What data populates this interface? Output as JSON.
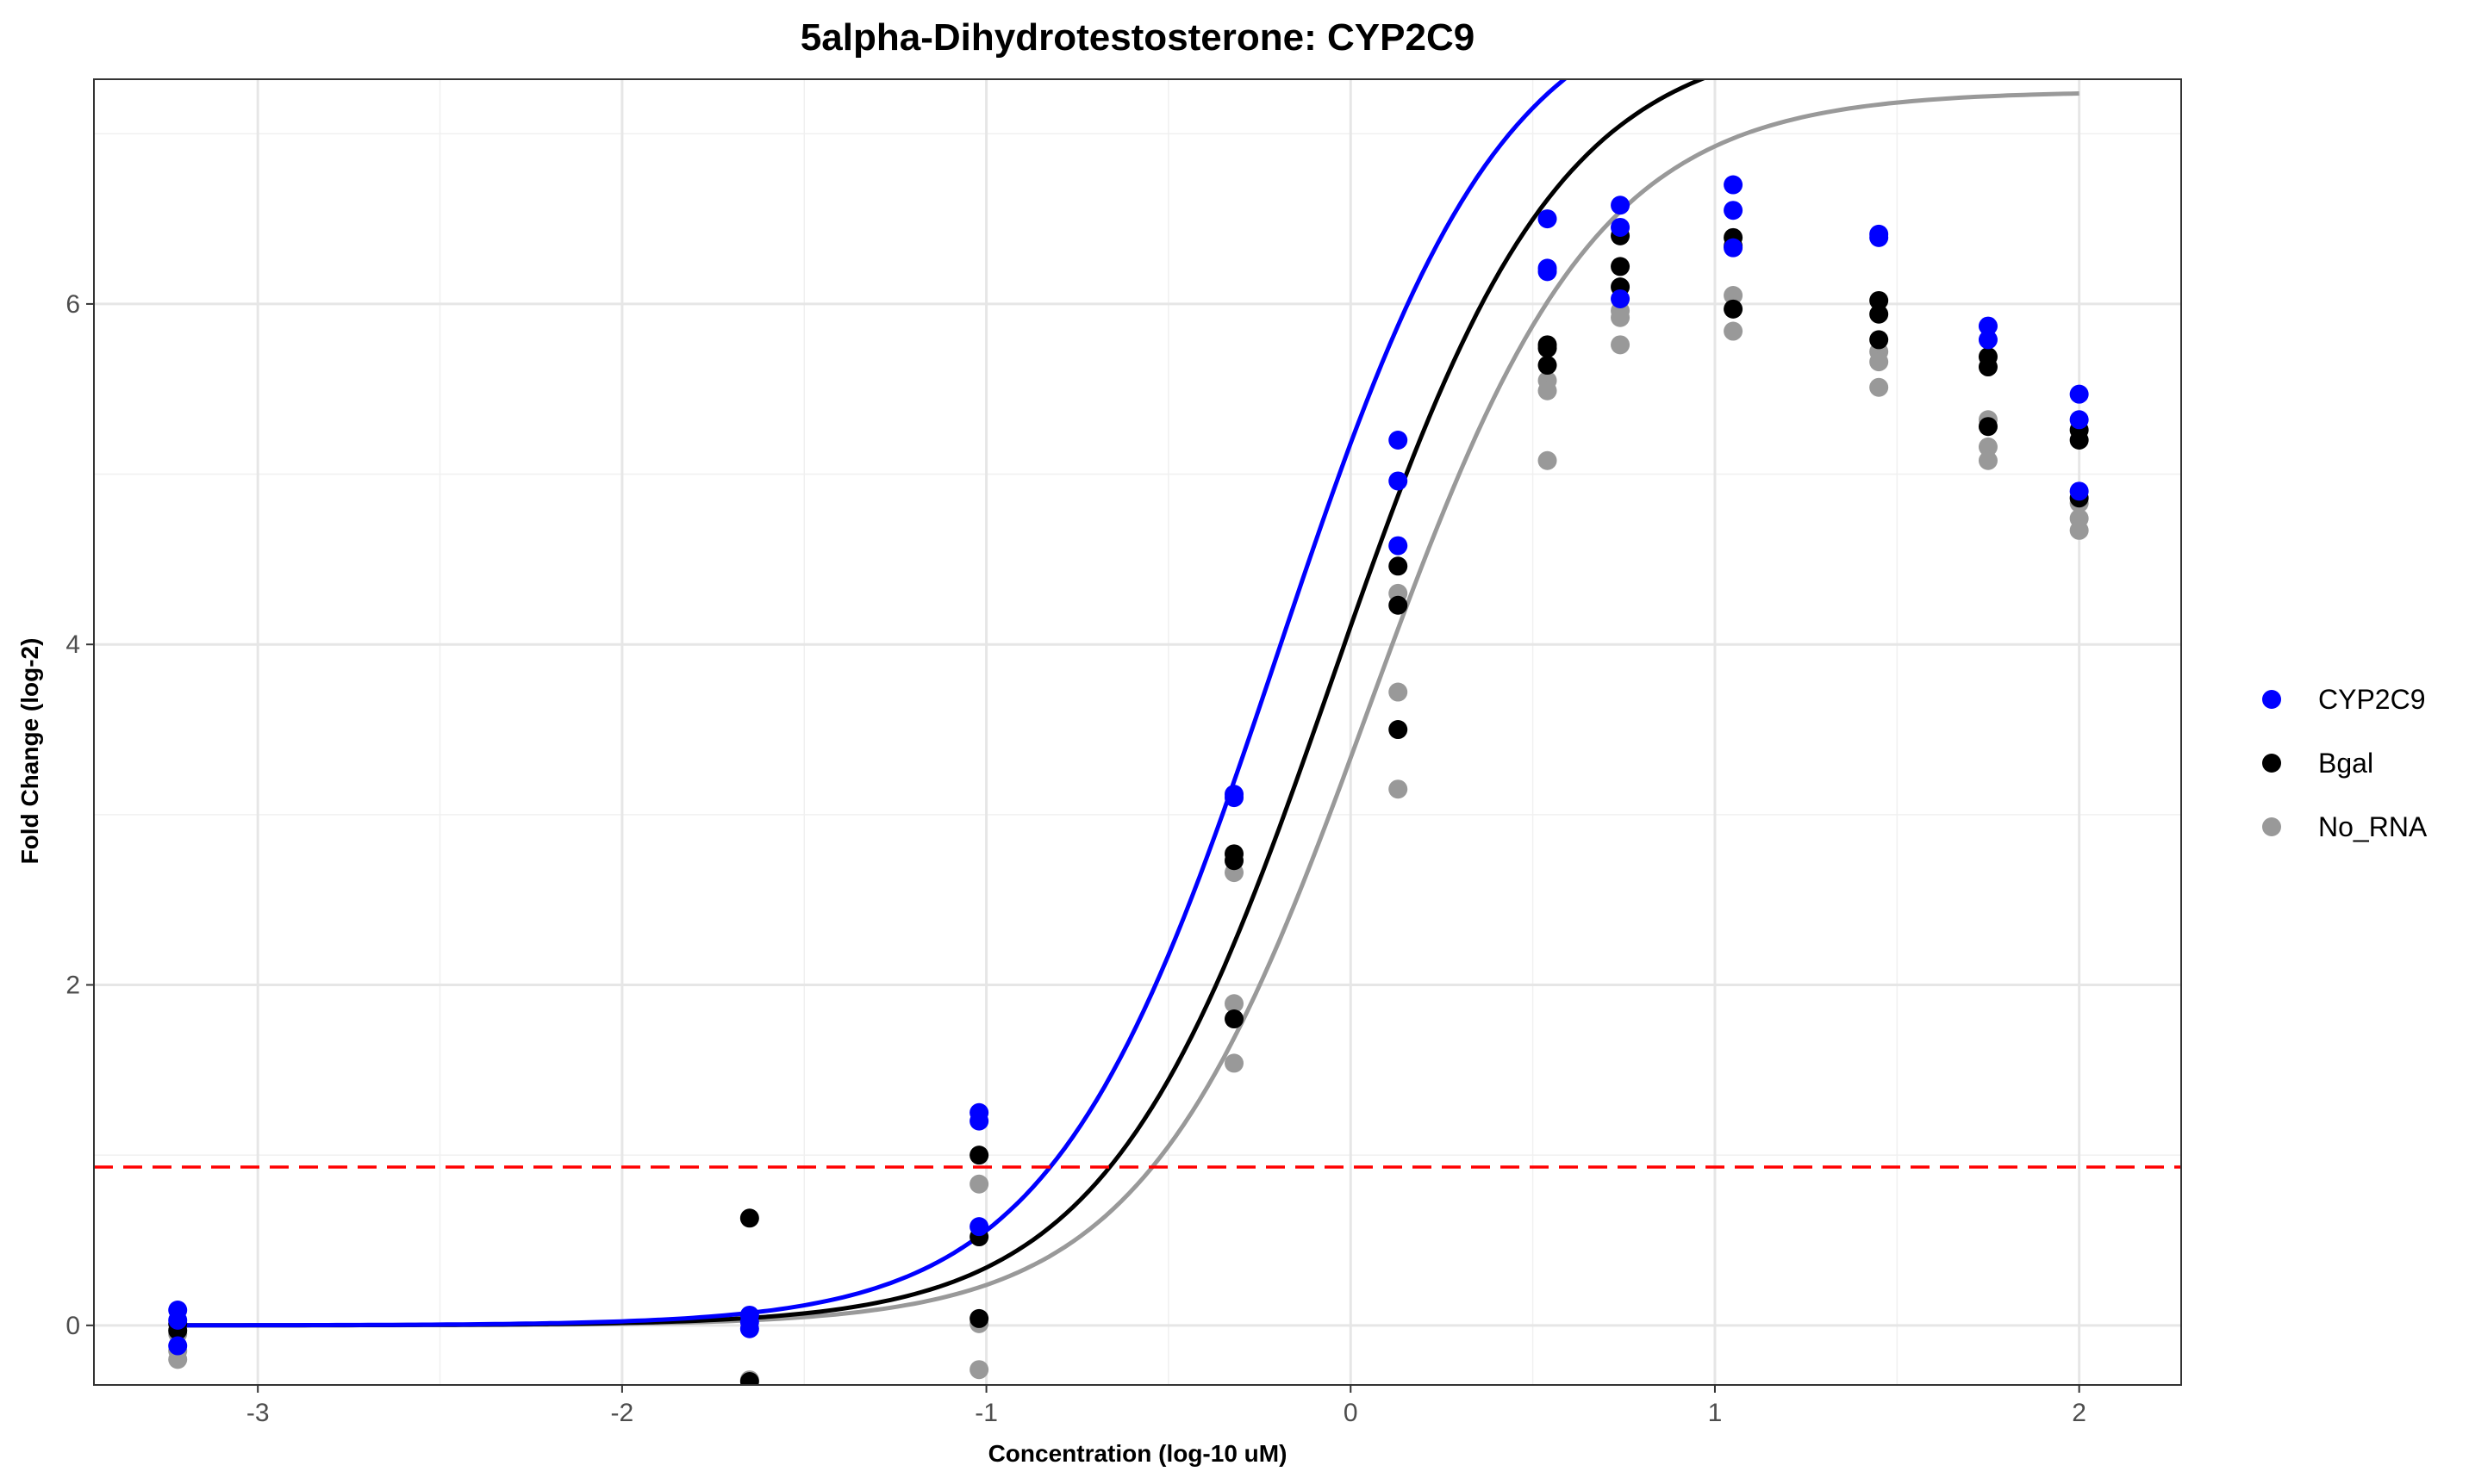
{
  "chart_data": {
    "type": "scatter",
    "title": "5alpha-Dihydrotestosterone: CYP2C9",
    "xlabel": "Concentration (log-10 uM)",
    "ylabel": "Fold Change (log-2)",
    "xlim": [
      -3.45,
      2.28
    ],
    "ylim": [
      -0.35,
      7.32
    ],
    "x_ticks": [
      -3,
      -2,
      -1,
      0,
      1,
      2
    ],
    "y_ticks": [
      0,
      2,
      4,
      6
    ],
    "x_tick_labels": [
      "-3",
      "-2",
      "-1",
      "0",
      "1",
      "2"
    ],
    "y_tick_labels": [
      "0",
      "2",
      "4",
      "6"
    ],
    "grid": true,
    "legend_position": "right",
    "threshold_line": {
      "y": 0.93,
      "color": "#ff0000",
      "style": "dashed"
    },
    "series": [
      {
        "name": "CYP2C9",
        "color": "#0000ff",
        "points": [
          [
            -3.22,
            0.09
          ],
          [
            -3.22,
            0.03
          ],
          [
            -3.22,
            -0.12
          ],
          [
            -1.65,
            0.06
          ],
          [
            -1.65,
            0.02
          ],
          [
            -1.65,
            -0.02
          ],
          [
            -1.02,
            1.25
          ],
          [
            -1.02,
            1.2
          ],
          [
            -1.02,
            0.58
          ],
          [
            -0.32,
            3.12
          ],
          [
            -0.32,
            3.1
          ],
          [
            0.13,
            5.2
          ],
          [
            0.13,
            4.96
          ],
          [
            0.13,
            4.58
          ],
          [
            0.54,
            6.5
          ],
          [
            0.54,
            6.21
          ],
          [
            0.54,
            6.19
          ],
          [
            0.74,
            6.58
          ],
          [
            0.74,
            6.45
          ],
          [
            0.74,
            6.03
          ],
          [
            1.05,
            6.7
          ],
          [
            1.05,
            6.55
          ],
          [
            1.05,
            6.33
          ],
          [
            1.45,
            6.41
          ],
          [
            1.45,
            6.39
          ],
          [
            1.75,
            5.87
          ],
          [
            1.75,
            5.79
          ],
          [
            2.0,
            5.47
          ],
          [
            2.0,
            5.32
          ],
          [
            2.0,
            4.9
          ]
        ],
        "curve": {
          "bottom": 0,
          "top": 7.9,
          "ec50_log": -0.2,
          "hill": 1.4
        }
      },
      {
        "name": "Bgal",
        "color": "#000000",
        "points": [
          [
            -3.22,
            0.01
          ],
          [
            -3.22,
            -0.03
          ],
          [
            -1.65,
            0.63
          ],
          [
            -1.65,
            -0.33
          ],
          [
            -1.02,
            1.0
          ],
          [
            -1.02,
            0.52
          ],
          [
            -1.02,
            0.04
          ],
          [
            -0.32,
            2.77
          ],
          [
            -0.32,
            2.73
          ],
          [
            -0.32,
            1.8
          ],
          [
            0.13,
            4.46
          ],
          [
            0.13,
            4.23
          ],
          [
            0.13,
            3.5
          ],
          [
            0.54,
            5.76
          ],
          [
            0.54,
            5.74
          ],
          [
            0.54,
            5.64
          ],
          [
            0.74,
            6.4
          ],
          [
            0.74,
            6.22
          ],
          [
            0.74,
            6.1
          ],
          [
            1.05,
            6.39
          ],
          [
            1.05,
            6.34
          ],
          [
            1.05,
            5.97
          ],
          [
            1.45,
            6.02
          ],
          [
            1.45,
            5.94
          ],
          [
            1.45,
            5.79
          ],
          [
            1.75,
            5.69
          ],
          [
            1.75,
            5.63
          ],
          [
            1.75,
            5.28
          ],
          [
            2.0,
            5.26
          ],
          [
            2.0,
            5.2
          ],
          [
            2.0,
            4.86
          ]
        ],
        "curve": {
          "bottom": 0,
          "top": 7.6,
          "ec50_log": -0.05,
          "hill": 1.4
        }
      },
      {
        "name": "No_RNA",
        "color": "#999999",
        "points": [
          [
            -3.22,
            -0.05
          ],
          [
            -3.22,
            -0.15
          ],
          [
            -3.22,
            -0.2
          ],
          [
            -1.65,
            -0.32
          ],
          [
            -1.02,
            0.83
          ],
          [
            -1.02,
            0.01
          ],
          [
            -1.02,
            -0.26
          ],
          [
            -0.32,
            2.66
          ],
          [
            -0.32,
            1.89
          ],
          [
            -0.32,
            1.54
          ],
          [
            0.13,
            4.3
          ],
          [
            0.13,
            3.72
          ],
          [
            0.13,
            3.15
          ],
          [
            0.54,
            5.55
          ],
          [
            0.54,
            5.49
          ],
          [
            0.54,
            5.08
          ],
          [
            0.74,
            5.96
          ],
          [
            0.74,
            5.92
          ],
          [
            0.74,
            5.76
          ],
          [
            1.05,
            6.05
          ],
          [
            1.05,
            5.84
          ],
          [
            1.45,
            5.72
          ],
          [
            1.45,
            5.66
          ],
          [
            1.45,
            5.51
          ],
          [
            1.75,
            5.32
          ],
          [
            1.75,
            5.16
          ],
          [
            1.75,
            5.08
          ],
          [
            2.0,
            4.83
          ],
          [
            2.0,
            4.74
          ],
          [
            2.0,
            4.67
          ]
        ],
        "curve": {
          "bottom": 0,
          "top": 7.25,
          "ec50_log": 0.05,
          "hill": 1.4
        }
      }
    ]
  }
}
